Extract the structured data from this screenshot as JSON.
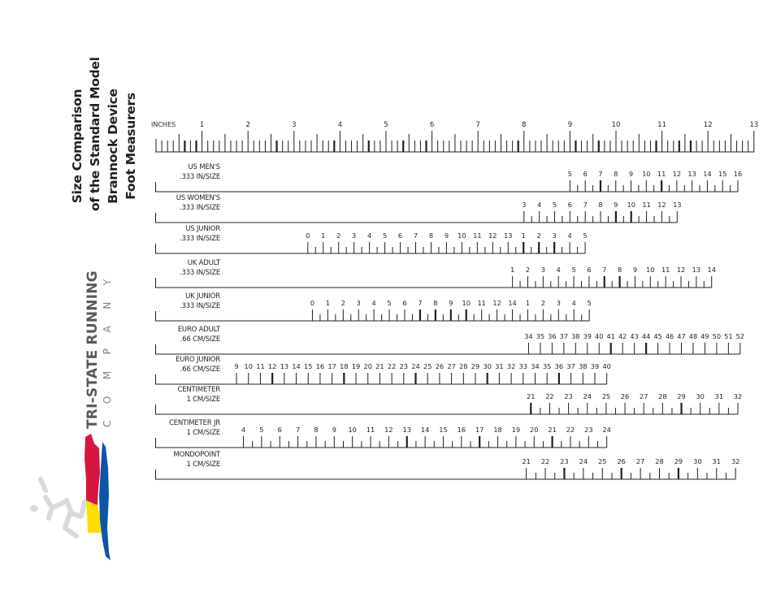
{
  "title": {
    "lines": [
      "Size Comparison",
      "of the Standard Model",
      "Brannock Device",
      "Foot Measurers"
    ]
  },
  "brand": {
    "name": "TRI-STATE RUNNING",
    "sub": "COMPANY",
    "colors": {
      "red": "#d6163f",
      "yellow": "#ffde00",
      "blue": "#0b57a6",
      "runner": "#d9d9d9"
    }
  },
  "inches_ruler": {
    "label": "INCHES",
    "ticks": [
      "1",
      "2",
      "3",
      "4",
      "5",
      "6",
      "7",
      "8",
      "9",
      "10",
      "11",
      "12",
      "13"
    ]
  },
  "scales": [
    {
      "name": "US MEN'S",
      "unit": ".333 IN/SIZE",
      "numbers": [
        "5",
        "6",
        "7",
        "8",
        "9",
        "10",
        "11",
        "12",
        "13",
        "14",
        "15",
        "16"
      ]
    },
    {
      "name": "US WOMEN'S",
      "unit": ".333 IN/SIZE",
      "numbers": [
        "3",
        "4",
        "5",
        "6",
        "7",
        "8",
        "9",
        "10",
        "11",
        "12",
        "13"
      ]
    },
    {
      "name": "US JUNIOR",
      "unit": ".333 IN/SIZE",
      "numbers": [
        "0",
        "1",
        "2",
        "3",
        "4",
        "5",
        "6",
        "7",
        "8",
        "9",
        "10",
        "11",
        "12",
        "13",
        "1",
        "2",
        "3",
        "4",
        "5"
      ]
    },
    {
      "name": "UK ADULT",
      "unit": ".333 IN/SIZE",
      "numbers": [
        "1",
        "2",
        "3",
        "4",
        "5",
        "6",
        "7",
        "8",
        "9",
        "10",
        "11",
        "12",
        "13",
        "14"
      ]
    },
    {
      "name": "UK JUNIOR",
      "unit": ".333 IN/SIZE",
      "numbers": [
        "0",
        "1",
        "2",
        "3",
        "4",
        "5",
        "6",
        "7",
        "8",
        "9",
        "10",
        "11",
        "12",
        "14",
        "1",
        "2",
        "3",
        "4",
        "5"
      ]
    },
    {
      "name": "EURO ADULT",
      "unit": ".66 CM/SIZE",
      "numbers": [
        "34",
        "35",
        "36",
        "37",
        "38",
        "39",
        "40",
        "41",
        "42",
        "43",
        "44",
        "45",
        "46",
        "47",
        "48",
        "49",
        "50",
        "51",
        "52"
      ]
    },
    {
      "name": "EURO JUNIOR",
      "unit": ".66 CM/SIZE",
      "numbers": [
        "9",
        "10",
        "11",
        "12",
        "13",
        "14",
        "15",
        "16",
        "17",
        "18",
        "19",
        "20",
        "21",
        "22",
        "23",
        "24",
        "25",
        "26",
        "27",
        "28",
        "29",
        "30",
        "31",
        "32",
        "33",
        "34",
        "35",
        "36",
        "37",
        "38",
        "39",
        "40"
      ]
    },
    {
      "name": "CENTIMETER",
      "unit": "1 CM/SIZE",
      "numbers": [
        "21",
        "22",
        "23",
        "24",
        "25",
        "26",
        "27",
        "28",
        "29",
        "30",
        "31",
        "32"
      ]
    },
    {
      "name": "CENTIMETER JR",
      "unit": "1 CM/SIZE",
      "numbers": [
        "4",
        "5",
        "6",
        "7",
        "8",
        "9",
        "10",
        "11",
        "12",
        "13",
        "14",
        "15",
        "16",
        "17",
        "18",
        "19",
        "20",
        "21",
        "22",
        "23",
        "24"
      ]
    },
    {
      "name": "MONDOPOINT",
      "unit": "1 CM/SIZE",
      "numbers": [
        "21",
        "22",
        "23",
        "24",
        "25",
        "26",
        "27",
        "28",
        "29",
        "30",
        "31",
        "32"
      ]
    }
  ]
}
